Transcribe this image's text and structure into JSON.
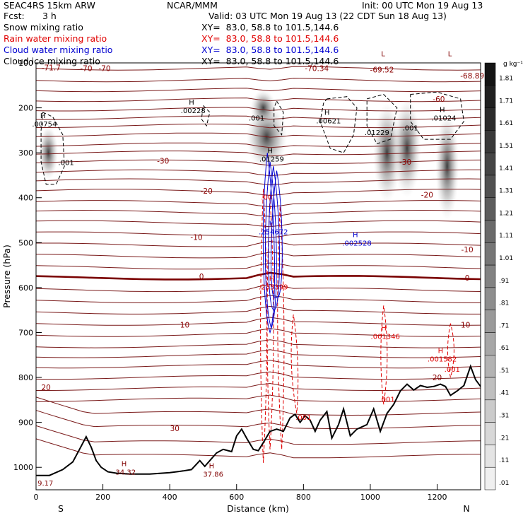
{
  "header": {
    "model": "SEAC4RS 15km ARW",
    "org": "NCAR/MMM",
    "init": "Init: 00 UTC Mon 19 Aug 13",
    "fcst_label": "Fcst:",
    "fcst_value": "3 h",
    "valid": "Valid: 03 UTC Mon 19 Aug 13 (22 CDT Sun 18 Aug 13)"
  },
  "fields": [
    {
      "name": "Snow mixing ratio",
      "color": "#000000",
      "xy": "XY=  83.0, 58.8 to 101.5,144.6"
    },
    {
      "name": "Rain water mixing ratio",
      "color": "#e00000",
      "xy": "XY=  83.0, 58.8 to 101.5,144.6"
    },
    {
      "name": "Cloud water mixing ratio",
      "color": "#0000d0",
      "xy": "XY=  83.0, 58.8 to 101.5,144.6"
    },
    {
      "name": "Cloud ice mixing ratio",
      "color": "#000000",
      "xy": "XY=  83.0, 58.8 to 101.5,144.6"
    }
  ],
  "chart_data": {
    "type": "contour cross-section",
    "xlabel": "Distance (km)",
    "ylabel": "Pressure (hPa)",
    "xlim": [
      0,
      1330
    ],
    "ylim": [
      1050,
      100
    ],
    "xticks": [
      0,
      200,
      400,
      600,
      800,
      1000,
      1200
    ],
    "yticks": [
      100,
      200,
      300,
      400,
      500,
      600,
      700,
      800,
      900,
      1000
    ],
    "end_labels": [
      "S",
      "N"
    ],
    "colorbar_unit": "g kg⁻¹",
    "colorbar_ticks": [
      "1.81",
      "1.71",
      "1.61",
      "1.51",
      "1.41",
      "1.31",
      "1.21",
      "1.11",
      "1.01",
      ".91",
      ".81",
      ".71",
      ".61",
      ".51",
      ".41",
      ".31",
      ".21",
      ".11",
      ".01"
    ],
    "temperature_labels": [
      {
        "text": "-71.7",
        "x": 45,
        "p": 110
      },
      {
        "text": "-70",
        "x": 150,
        "p": 112
      },
      {
        "text": "-70",
        "x": 205,
        "p": 112
      },
      {
        "text": "-70.34",
        "x": 840,
        "p": 112
      },
      {
        "text": "-69.52",
        "x": 1035,
        "p": 115
      },
      {
        "text": "-68.89",
        "x": 1305,
        "p": 128
      },
      {
        "text": "-60",
        "x": 1205,
        "p": 180
      },
      {
        "text": "-30",
        "x": 380,
        "p": 318
      },
      {
        "text": "-30",
        "x": 1105,
        "p": 320
      },
      {
        "text": "-20",
        "x": 510,
        "p": 385
      },
      {
        "text": "-20",
        "x": 1170,
        "p": 393
      },
      {
        "text": "-10",
        "x": 480,
        "p": 488
      },
      {
        "text": "-10",
        "x": 1290,
        "p": 515
      },
      {
        "text": "0",
        "x": 495,
        "p": 575
      },
      {
        "text": "0",
        "x": 1290,
        "p": 578
      },
      {
        "text": "10",
        "x": 445,
        "p": 683
      },
      {
        "text": "10",
        "x": 1285,
        "p": 683
      },
      {
        "text": "20",
        "x": 30,
        "p": 822
      },
      {
        "text": "20",
        "x": 1200,
        "p": 800
      },
      {
        "text": "30",
        "x": 415,
        "p": 913
      }
    ],
    "extrema_labels": [
      {
        "mark": "L",
        "text": "",
        "x": 1045,
        "p": 98,
        "color": "#800000"
      },
      {
        "mark": "L",
        "text": "",
        "x": 1245,
        "p": 98,
        "color": "#800000"
      },
      {
        "mark": "H",
        "text": "34.32",
        "x": 268,
        "p": 1010,
        "color": "#800000"
      },
      {
        "mark": "H",
        "text": "37.86",
        "x": 530,
        "p": 1015,
        "color": "#800000"
      },
      {
        "mark": "",
        "text": "9.17",
        "x": 28,
        "p": 1034,
        "color": "#800000"
      },
      {
        "mark": "H",
        "text": ".00754",
        "x": 25,
        "p": 235,
        "color": "#000000"
      },
      {
        "mark": "",
        "text": ".001",
        "x": 90,
        "p": 321,
        "color": "#000000"
      },
      {
        "mark": "H",
        "text": ".00228",
        "x": 470,
        "p": 205,
        "color": "#000000"
      },
      {
        "mark": "",
        "text": ".001",
        "x": 660,
        "p": 222,
        "color": "#000000"
      },
      {
        "mark": "H",
        "text": ".01259",
        "x": 705,
        "p": 313,
        "color": "#000000"
      },
      {
        "mark": "H",
        "text": ".00621",
        "x": 875,
        "p": 228,
        "color": "#000000"
      },
      {
        "mark": "",
        "text": ".01229",
        "x": 1020,
        "p": 254,
        "color": "#000000"
      },
      {
        "mark": "",
        "text": ".001",
        "x": 1120,
        "p": 244,
        "color": "#000000"
      },
      {
        "mark": "H",
        "text": ".01024",
        "x": 1220,
        "p": 222,
        "color": "#000000"
      },
      {
        "mark": "H",
        "text": ".254672",
        "x": 710,
        "p": 475,
        "color": "#0000d0"
      },
      {
        "mark": "H",
        "text": ".002528",
        "x": 960,
        "p": 500,
        "color": "#0000d0"
      },
      {
        "mark": "",
        "text": ".00",
        "x": 690,
        "p": 398,
        "color": "#e00000"
      },
      {
        "mark": "H",
        "text": ".235399",
        "x": 710,
        "p": 598,
        "color": "#e00000"
      },
      {
        "mark": "H",
        "text": ".001346",
        "x": 1045,
        "p": 708,
        "color": "#e00000"
      },
      {
        "mark": "H",
        "text": ".001582",
        "x": 1215,
        "p": 758,
        "color": "#e00000"
      },
      {
        "mark": "",
        "text": ".001",
        "x": 1245,
        "p": 781,
        "color": "#e00000"
      },
      {
        "mark": "",
        "text": ".001",
        "x": 1050,
        "p": 848,
        "color": "#e00000"
      },
      {
        "mark": "",
        "text": ".001",
        "x": 800,
        "p": 888,
        "color": "#e00000"
      }
    ],
    "terrain": {
      "x": [
        0,
        40,
        80,
        110,
        130,
        150,
        165,
        180,
        195,
        215,
        240,
        280,
        340,
        400,
        440,
        465,
        480,
        490,
        505,
        520,
        540,
        560,
        585,
        600,
        615,
        630,
        650,
        665,
        680,
        700,
        720,
        740,
        760,
        775,
        790,
        805,
        820,
        835,
        850,
        870,
        885,
        905,
        920,
        940,
        960,
        990,
        1010,
        1030,
        1050,
        1070,
        1090,
        1110,
        1130,
        1150,
        1170,
        1190,
        1210,
        1225,
        1240,
        1260,
        1280,
        1300,
        1315,
        1330
      ],
      "p": [
        1018,
        1018,
        1005,
        988,
        960,
        932,
        955,
        985,
        1000,
        1010,
        1013,
        1015,
        1015,
        1012,
        1008,
        1005,
        993,
        985,
        998,
        985,
        968,
        960,
        965,
        930,
        915,
        935,
        960,
        963,
        945,
        920,
        915,
        920,
        890,
        882,
        900,
        885,
        895,
        920,
        895,
        876,
        935,
        905,
        870,
        930,
        915,
        905,
        870,
        920,
        880,
        860,
        830,
        815,
        828,
        818,
        822,
        820,
        815,
        820,
        840,
        830,
        818,
        775,
        805,
        820
      ]
    }
  }
}
